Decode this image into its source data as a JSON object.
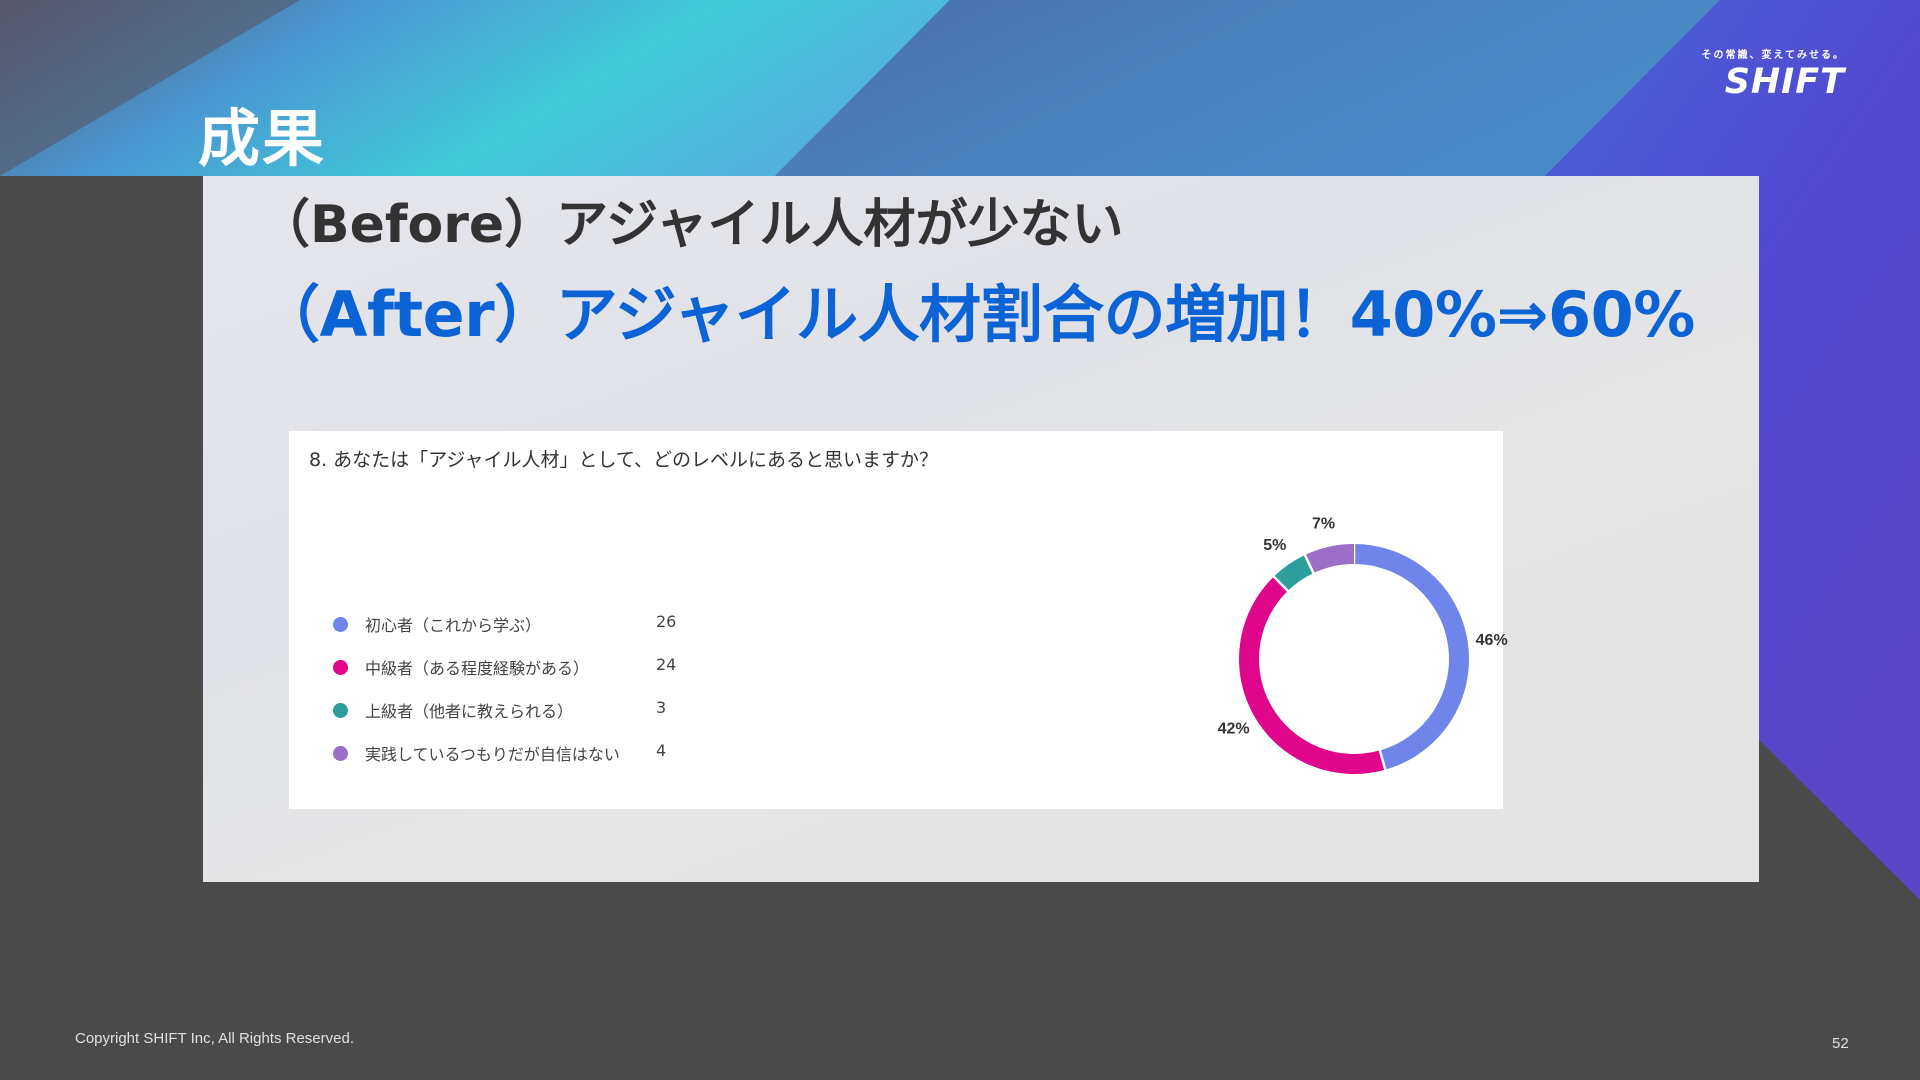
{
  "slide": {
    "title": "成果",
    "before_text": "（Before）アジャイル人材が少ない",
    "after_text": "（After）アジャイル人材割合の増加！40%⇒60%",
    "page_number": "52",
    "copyright": "Copyright SHIFT Inc, All Rights Reserved."
  },
  "logo": {
    "tagline": "その常識、変えてみせる。",
    "brand": "SHIFT"
  },
  "colors": {
    "background": "#4a4a4a",
    "after_text": "#0b63d6",
    "series": [
      "#6f85ea",
      "#e0068b",
      "#2e9e9c",
      "#9b6fc7"
    ]
  },
  "chart_data": {
    "type": "pie",
    "variant": "donut",
    "title": "8. あなたは「アジャイル人材」として、どのレベルにあると思いますか？",
    "categories": [
      "初心者（これから学ぶ）",
      "中級者（ある程度経験がある）",
      "上級者（他者に教えられる）",
      "実践しているつもりだが自信はない"
    ],
    "values": [
      26,
      24,
      3,
      4
    ],
    "percent_labels": [
      "46%",
      "42%",
      "5%",
      "7%"
    ],
    "colors": [
      "#6f85ea",
      "#e0068b",
      "#2e9e9c",
      "#9b6fc7"
    ],
    "legend_position": "left"
  }
}
